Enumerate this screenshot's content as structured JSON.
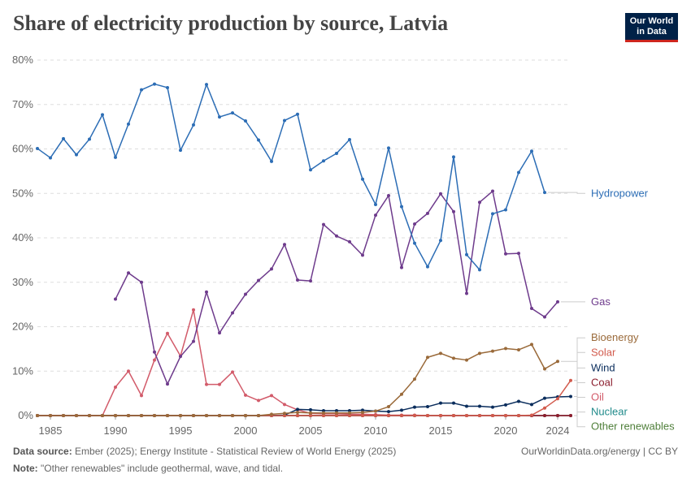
{
  "title": "Share of electricity production by source, Latvia",
  "logo": {
    "line1": "Our World",
    "line2": "in Data"
  },
  "footer": {
    "source_label": "Data source:",
    "source_text": "Ember (2025); Energy Institute - Statistical Review of World Energy (2025)",
    "url_text": "OurWorldinData.org/energy | CC BY",
    "note_label": "Note:",
    "note_text": "\"Other renewables\" include geothermal, wave, and tidal."
  },
  "chart_data": {
    "type": "line",
    "title": "Share of electricity production by source, Latvia",
    "xlim": [
      1984,
      2025
    ],
    "ylim": [
      0,
      80
    ],
    "x_ticks": [
      1985,
      1990,
      1995,
      2000,
      2005,
      2010,
      2015,
      2020,
      2024
    ],
    "y_ticks": [
      0,
      10,
      20,
      30,
      40,
      50,
      60,
      70,
      80
    ],
    "y_tick_labels": [
      "0%",
      "10%",
      "20%",
      "30%",
      "40%",
      "50%",
      "60%",
      "70%",
      "80%"
    ],
    "grid": true,
    "legend": "right, end labels",
    "series": [
      {
        "name": "Hydropower",
        "color": "#2c6db5",
        "x_start": 1984,
        "values": [
          60.1,
          58,
          62.3,
          58.7,
          62.2,
          67.7,
          58.1,
          65.6,
          73.3,
          74.6,
          73.8,
          59.7,
          65.4,
          74.5,
          67.2,
          68.1,
          66.3,
          62,
          57.2,
          66.4,
          67.8,
          55.3,
          57.3,
          59,
          62.1,
          53.2,
          47.5,
          60.2,
          47,
          38.8,
          33.5,
          39.4,
          58.2,
          36.2,
          32.8,
          45.4,
          46.3,
          54.7,
          59.5,
          50.2
        ],
        "label_value": 50
      },
      {
        "name": "Gas",
        "color": "#6e3b8c",
        "x_start": 1990,
        "values": [
          26.2,
          32.1,
          30,
          14.3,
          7.1,
          13.3,
          16.7,
          27.8,
          18.6,
          23.1,
          27.3,
          30.4,
          33,
          38.5,
          30.5,
          30.3,
          43,
          40.4,
          39.1,
          36.1,
          45.1,
          49.5,
          33.3,
          43.1,
          45.5,
          49.9,
          45.9,
          27.5,
          48,
          50.5,
          36.4,
          36.5,
          24.1,
          22.2,
          25.6
        ],
        "label_value": 25.6
      },
      {
        "name": "Bioenergy",
        "color": "#9a6a3a",
        "x_start": 1984,
        "values": [
          0,
          0,
          0,
          0,
          0,
          0,
          0,
          0,
          0,
          0,
          0,
          0,
          0,
          0,
          0,
          0,
          0,
          0,
          0.3,
          0.5,
          0.7,
          0.6,
          0.6,
          0.6,
          0.6,
          0.7,
          1,
          2,
          4.8,
          8.2,
          13.1,
          14,
          12.9,
          12.5,
          14,
          14.5,
          15.1,
          14.8,
          16,
          10.5,
          12.2
        ],
        "label_value": 17.5
      },
      {
        "name": "Solar",
        "color": "#d25b4d",
        "x_start": 1984,
        "values": [
          0,
          0,
          0,
          0,
          0,
          0,
          0,
          0,
          0,
          0,
          0,
          0,
          0,
          0,
          0,
          0,
          0,
          0,
          0,
          0,
          0,
          0,
          0,
          0,
          0,
          0,
          0,
          0,
          0,
          0,
          0,
          0,
          0,
          0,
          0,
          0,
          0,
          0,
          0.1,
          1.7,
          3.8,
          7.9
        ],
        "label_value": 14.2
      },
      {
        "name": "Wind",
        "color": "#0a2d5c",
        "x_start": 1984,
        "values": [
          0,
          0,
          0,
          0,
          0,
          0,
          0,
          0,
          0,
          0,
          0,
          0,
          0,
          0,
          0,
          0,
          0,
          0,
          0,
          0.1,
          1.4,
          1.3,
          1.1,
          1.1,
          1.1,
          1.2,
          1,
          0.9,
          1.2,
          1.9,
          2,
          2.8,
          2.8,
          2.1,
          2.1,
          1.9,
          2.4,
          3.2,
          2.5,
          3.9,
          4.2,
          4.3
        ],
        "label_value": 10.7
      },
      {
        "name": "Coal",
        "color": "#8b1e2e",
        "x_start": 1984,
        "values": [
          0,
          0,
          0,
          0,
          0,
          0,
          0,
          0,
          0,
          0,
          0,
          0,
          0,
          0,
          0,
          0,
          0,
          0,
          0,
          0,
          0,
          0,
          0,
          0,
          0,
          0,
          0,
          0,
          0,
          0,
          0,
          0,
          0,
          0,
          0,
          0,
          0,
          0,
          0,
          0,
          0,
          0
        ],
        "label_value": 7.4
      },
      {
        "name": "Oil",
        "color": "#d25b6a",
        "x_start": 1984,
        "values": [
          0,
          0,
          0,
          0,
          0,
          0,
          6.4,
          10,
          4.5,
          12.5,
          18.5,
          13.4,
          23.8,
          7,
          7,
          9.8,
          4.6,
          3.4,
          4.5,
          2.5,
          1.3,
          0.5,
          0.4,
          0.4,
          0.3,
          0.3,
          0.2,
          0.1,
          0.1,
          0.1,
          0,
          0,
          0,
          0,
          0,
          0,
          0,
          0,
          0,
          0,
          0,
          0
        ],
        "label_value": 4.1
      },
      {
        "name": "Nuclear",
        "color": "#1f8a8a",
        "x_start": 1984,
        "values": [
          0,
          0,
          0,
          0,
          0,
          0,
          0,
          0,
          0,
          0,
          0,
          0,
          0,
          0,
          0,
          0,
          0,
          0,
          0,
          0,
          0,
          0,
          0,
          0,
          0,
          0,
          0,
          0,
          0,
          0,
          0,
          0,
          0,
          0,
          0,
          0,
          0,
          0,
          0,
          0,
          0,
          0
        ],
        "label_value": 0.8
      },
      {
        "name": "Other renewables",
        "color": "#4f7f3a",
        "x_start": 1984,
        "values": [
          0,
          0,
          0,
          0,
          0,
          0,
          0,
          0,
          0,
          0,
          0,
          0,
          0,
          0,
          0,
          0,
          0,
          0,
          0,
          0,
          0,
          0,
          0,
          0,
          0,
          0,
          0,
          0,
          0,
          0,
          0,
          0,
          0,
          0,
          0,
          0,
          0,
          0,
          0,
          0,
          0,
          0
        ],
        "label_value": -2.5
      }
    ]
  }
}
